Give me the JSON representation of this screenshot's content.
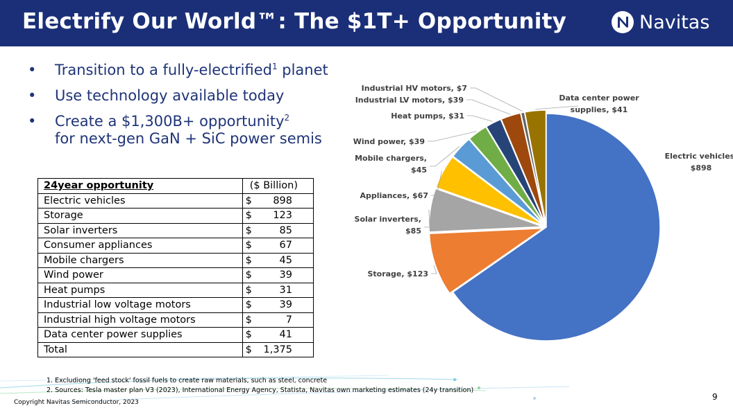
{
  "header": {
    "title": "Electrify Our World™: The $1T+ Opportunity",
    "brand": "Navitas",
    "brand_icon": "navitas-logo-icon"
  },
  "bullets": [
    {
      "text": "Transition to a fully-electrified",
      "sup": "1",
      "tail": " planet"
    },
    {
      "text": "Use technology available today",
      "sup": "",
      "tail": ""
    },
    {
      "text": "Create a $1,300B+ opportunity",
      "sup": "2",
      "tail": "",
      "line2": "for next-gen GaN + SiC power semis"
    }
  ],
  "table": {
    "header": {
      "label": "24year opportunity",
      "unit": "($ Billion)"
    },
    "currency": "$",
    "rows": [
      {
        "label": "Electric vehicles",
        "value": "898"
      },
      {
        "label": "Storage",
        "value": "123"
      },
      {
        "label": "Solar inverters",
        "value": "85"
      },
      {
        "label": "Consumer appliances",
        "value": "67"
      },
      {
        "label": "Mobile chargers",
        "value": "45"
      },
      {
        "label": "Wind power",
        "value": "39"
      },
      {
        "label": "Heat pumps",
        "value": "31"
      },
      {
        "label": "Industrial low voltage motors",
        "value": "39"
      },
      {
        "label": "Industrial high voltage motors",
        "value": "7"
      },
      {
        "label": "Data center power supplies",
        "value": "41"
      },
      {
        "label": "Total",
        "value": "1,375"
      }
    ]
  },
  "chart_data": {
    "type": "pie",
    "categories": [
      "Electric vehicles",
      "Storage",
      "Solar inverters",
      "Appliances",
      "Mobile chargers",
      "Wind power",
      "Heat pumps",
      "Industrial LV motors",
      "Industrial HV motors",
      "Data center power supplies"
    ],
    "values": [
      898,
      123,
      85,
      67,
      45,
      39,
      31,
      39,
      7,
      41
    ],
    "data_labels": [
      [
        "Electric vehicles,",
        "$898"
      ],
      [
        "Storage, $123"
      ],
      [
        "Solar inverters,",
        "$85"
      ],
      [
        "Appliances, $67"
      ],
      [
        "Mobile chargers,",
        "$45"
      ],
      [
        "Wind power, $39"
      ],
      [
        "Heat pumps, $31"
      ],
      [
        "Industrial LV motors, $39"
      ],
      [
        "Industrial HV motors, $7"
      ],
      [
        "Data center power",
        "supplies, $41"
      ]
    ],
    "colors": [
      "#4472c4",
      "#ed7d31",
      "#a5a5a5",
      "#ffc000",
      "#5b9bd5",
      "#70ad47",
      "#264478",
      "#9e480e",
      "#636363",
      "#997300"
    ],
    "start_angle_deg": 0,
    "direction": "clockwise",
    "exploded": true,
    "title": ""
  },
  "footnotes": [
    "1. Excludiong 'feed stock' fossil fuels to create raw materials, such as steel, concrete",
    "2. Sources: Tesla master plan V3 (2023), International Energy Agency, Statista, Navitas own marketing estimates (24y transition)"
  ],
  "copyright": "Copyright Navitas Semiconductor, 2023",
  "page_number": "9"
}
